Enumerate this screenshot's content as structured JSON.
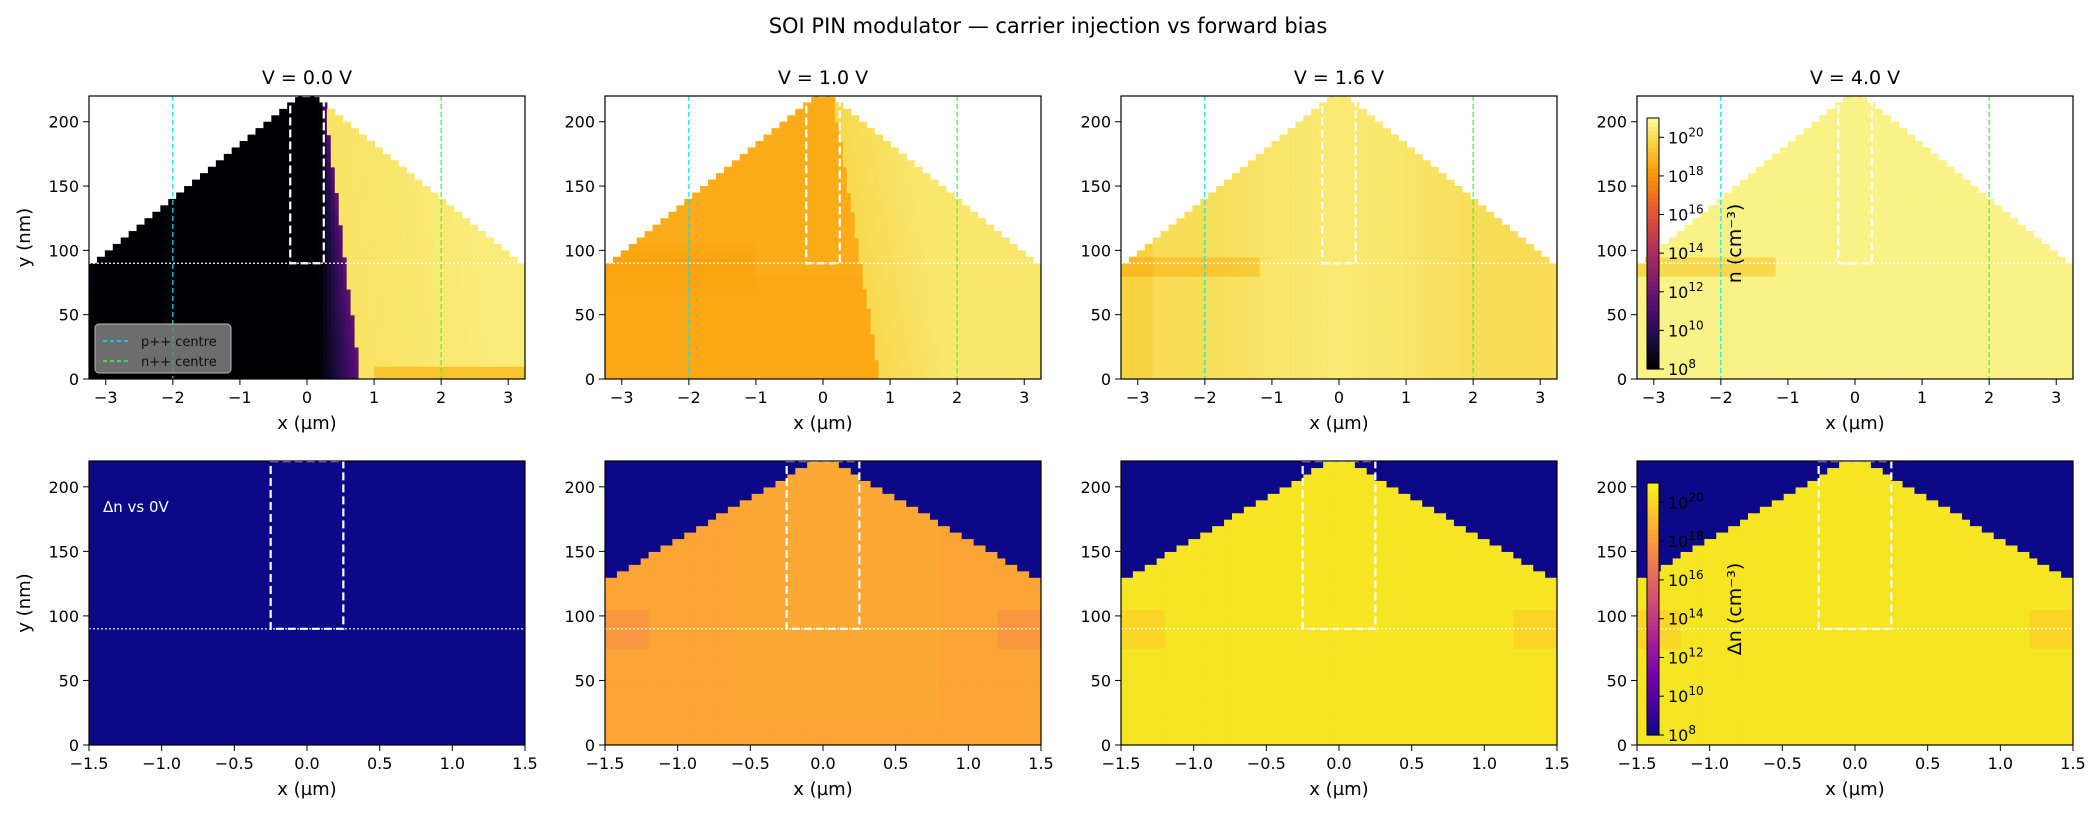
{
  "title": "SOI PIN modulator — carrier injection vs forward bias",
  "colors": {
    "inferno": [
      "#000004",
      "#1b0c41",
      "#4a0c6b",
      "#781c6d",
      "#a52c60",
      "#cf4446",
      "#ed6925",
      "#fb9b06",
      "#f7d13d",
      "#fcffa4"
    ],
    "plasma": [
      "#0d0887",
      "#46039f",
      "#7201a8",
      "#9c179e",
      "#bd3786",
      "#d8576b",
      "#ed7953",
      "#fb9f3a",
      "#fdca26",
      "#f0f921"
    ],
    "p_marker": "#00e5ff",
    "n_marker": "#33ff33",
    "overlay": "#ffffff"
  },
  "chart_data": [
    {
      "type": "heatmap",
      "row": "top",
      "title": "V = 0.0 V",
      "xlabel": "x (µm)",
      "ylabel": "y (nm)",
      "xlim": [
        -3.25,
        3.25
      ],
      "ylim": [
        0,
        220
      ],
      "xticks": [
        "−3",
        "−2",
        "−1",
        "0",
        "1",
        "2",
        "3"
      ],
      "xtick_values": [
        -3,
        -2,
        -1,
        0,
        1,
        2,
        3
      ],
      "yticks": [
        "0",
        "50",
        "100",
        "150",
        "200"
      ],
      "ytick_values": [
        0,
        50,
        100,
        150,
        200
      ],
      "legend": [
        {
          "label": "p++ centre",
          "x": -2,
          "color": "#00e5ff"
        },
        {
          "label": "n++ centre",
          "x": 2,
          "color": "#33ff33"
        }
      ],
      "legend_position": "lower-left",
      "rib_box": {
        "x": [
          -0.25,
          0.25
        ],
        "y": [
          90,
          220
        ]
      },
      "slab_line_y": 90,
      "colormap": "inferno",
      "log_range": [
        8,
        21
      ],
      "field": "bias0",
      "v": 0.0
    },
    {
      "type": "heatmap",
      "row": "top",
      "title": "V = 1.0 V",
      "xlabel": "x (µm)",
      "xlim": [
        -3.25,
        3.25
      ],
      "ylim": [
        0,
        220
      ],
      "xticks": [
        "−3",
        "−2",
        "−1",
        "0",
        "1",
        "2",
        "3"
      ],
      "xtick_values": [
        -3,
        -2,
        -1,
        0,
        1,
        2,
        3
      ],
      "yticks": [
        "0",
        "50",
        "100",
        "150",
        "200"
      ],
      "ytick_values": [
        0,
        50,
        100,
        150,
        200
      ],
      "markers": [
        {
          "x": -2,
          "color": "#00e5ff"
        },
        {
          "x": 2,
          "color": "#33ff33"
        }
      ],
      "rib_box": {
        "x": [
          -0.25,
          0.25
        ],
        "y": [
          90,
          220
        ]
      },
      "slab_line_y": 90,
      "colormap": "inferno",
      "log_range": [
        8,
        21
      ],
      "field": "bias1",
      "v": 1.0
    },
    {
      "type": "heatmap",
      "row": "top",
      "title": "V = 1.6 V",
      "xlabel": "x (µm)",
      "xlim": [
        -3.25,
        3.25
      ],
      "ylim": [
        0,
        220
      ],
      "xticks": [
        "−3",
        "−2",
        "−1",
        "0",
        "1",
        "2",
        "3"
      ],
      "xtick_values": [
        -3,
        -2,
        -1,
        0,
        1,
        2,
        3
      ],
      "yticks": [
        "0",
        "50",
        "100",
        "150",
        "200"
      ],
      "ytick_values": [
        0,
        50,
        100,
        150,
        200
      ],
      "markers": [
        {
          "x": -2,
          "color": "#00e5ff"
        },
        {
          "x": 2,
          "color": "#33ff33"
        }
      ],
      "rib_box": {
        "x": [
          -0.25,
          0.25
        ],
        "y": [
          90,
          220
        ]
      },
      "slab_line_y": 90,
      "colormap": "inferno",
      "log_range": [
        8,
        21
      ],
      "field": "bias16",
      "v": 1.6
    },
    {
      "type": "heatmap",
      "row": "top",
      "title": "V = 4.0 V",
      "xlabel": "x (µm)",
      "xlim": [
        -3.25,
        3.25
      ],
      "ylim": [
        0,
        220
      ],
      "xticks": [
        "−3",
        "−2",
        "−1",
        "0",
        "1",
        "2",
        "3"
      ],
      "xtick_values": [
        -3,
        -2,
        -1,
        0,
        1,
        2,
        3
      ],
      "yticks": [
        "0",
        "50",
        "100",
        "150",
        "200"
      ],
      "ytick_values": [
        0,
        50,
        100,
        150,
        200
      ],
      "markers": [
        {
          "x": -2,
          "color": "#00e5ff"
        },
        {
          "x": 2,
          "color": "#33ff33"
        }
      ],
      "rib_box": {
        "x": [
          -0.25,
          0.25
        ],
        "y": [
          90,
          220
        ]
      },
      "slab_line_y": 90,
      "colormap": "inferno",
      "log_range": [
        8,
        21
      ],
      "field": "bias4",
      "v": 4.0,
      "colorbar": {
        "label": "n  (cm⁻³)",
        "ticks": [
          {
            "base": "10",
            "exp": "8"
          },
          {
            "base": "10",
            "exp": "10"
          },
          {
            "base": "10",
            "exp": "12"
          },
          {
            "base": "10",
            "exp": "14"
          },
          {
            "base": "10",
            "exp": "16"
          },
          {
            "base": "10",
            "exp": "18"
          },
          {
            "base": "10",
            "exp": "20"
          }
        ],
        "tick_values": [
          8,
          10,
          12,
          14,
          16,
          18,
          20
        ],
        "range": [
          8,
          21
        ]
      }
    },
    {
      "type": "heatmap",
      "row": "bottom",
      "xlabel": "x (µm)",
      "ylabel": "y (nm)",
      "xlim": [
        -1.5,
        1.5
      ],
      "ylim": [
        0,
        220
      ],
      "xticks": [
        "−1.5",
        "−1.0",
        "−0.5",
        "0.0",
        "0.5",
        "1.0",
        "1.5"
      ],
      "xtick_values": [
        -1.5,
        -1,
        -0.5,
        0,
        0.5,
        1,
        1.5
      ],
      "yticks": [
        "0",
        "50",
        "100",
        "150",
        "200"
      ],
      "ytick_values": [
        0,
        50,
        100,
        150,
        200
      ],
      "annotation": "Δn vs 0V",
      "rib_box": {
        "x": [
          -0.25,
          0.25
        ],
        "y": [
          90,
          220
        ]
      },
      "slab_line_y": 90,
      "colormap": "plasma",
      "log_range": [
        8,
        21
      ],
      "field": "delta0",
      "v": 0.0
    },
    {
      "type": "heatmap",
      "row": "bottom",
      "xlabel": "x (µm)",
      "xlim": [
        -1.5,
        1.5
      ],
      "ylim": [
        0,
        220
      ],
      "xticks": [
        "−1.5",
        "−1.0",
        "−0.5",
        "0.0",
        "0.5",
        "1.0",
        "1.5"
      ],
      "xtick_values": [
        -1.5,
        -1,
        -0.5,
        0,
        0.5,
        1,
        1.5
      ],
      "yticks": [
        "0",
        "50",
        "100",
        "150",
        "200"
      ],
      "ytick_values": [
        0,
        50,
        100,
        150,
        200
      ],
      "rib_box": {
        "x": [
          -0.25,
          0.25
        ],
        "y": [
          90,
          220
        ]
      },
      "slab_line_y": 90,
      "colormap": "plasma",
      "log_range": [
        8,
        21
      ],
      "field": "delta",
      "v": 1.0
    },
    {
      "type": "heatmap",
      "row": "bottom",
      "xlabel": "x (µm)",
      "xlim": [
        -1.5,
        1.5
      ],
      "ylim": [
        0,
        220
      ],
      "xticks": [
        "−1.5",
        "−1.0",
        "−0.5",
        "0.0",
        "0.5",
        "1.0",
        "1.5"
      ],
      "xtick_values": [
        -1.5,
        -1,
        -0.5,
        0,
        0.5,
        1,
        1.5
      ],
      "yticks": [
        "0",
        "50",
        "100",
        "150",
        "200"
      ],
      "ytick_values": [
        0,
        50,
        100,
        150,
        200
      ],
      "rib_box": {
        "x": [
          -0.25,
          0.25
        ],
        "y": [
          90,
          220
        ]
      },
      "slab_line_y": 90,
      "colormap": "plasma",
      "log_range": [
        8,
        21
      ],
      "field": "delta",
      "v": 1.6
    },
    {
      "type": "heatmap",
      "row": "bottom",
      "xlabel": "x (µm)",
      "xlim": [
        -1.5,
        1.5
      ],
      "ylim": [
        0,
        220
      ],
      "xticks": [
        "−1.5",
        "−1.0",
        "−0.5",
        "0.0",
        "0.5",
        "1.0",
        "1.5"
      ],
      "xtick_values": [
        -1.5,
        -1,
        -0.5,
        0,
        0.5,
        1,
        1.5
      ],
      "yticks": [
        "0",
        "50",
        "100",
        "150",
        "200"
      ],
      "ytick_values": [
        0,
        50,
        100,
        150,
        200
      ],
      "rib_box": {
        "x": [
          -0.25,
          0.25
        ],
        "y": [
          90,
          220
        ]
      },
      "slab_line_y": 90,
      "colormap": "plasma",
      "log_range": [
        8,
        21
      ],
      "field": "delta",
      "v": 4.0,
      "colorbar": {
        "label": "Δn  (cm⁻³)",
        "ticks": [
          {
            "base": "10",
            "exp": "8"
          },
          {
            "base": "10",
            "exp": "10"
          },
          {
            "base": "10",
            "exp": "12"
          },
          {
            "base": "10",
            "exp": "14"
          },
          {
            "base": "10",
            "exp": "16"
          },
          {
            "base": "10",
            "exp": "18"
          },
          {
            "base": "10",
            "exp": "20"
          }
        ],
        "tick_values": [
          8,
          10,
          12,
          14,
          16,
          18,
          20
        ],
        "range": [
          8,
          21
        ]
      }
    }
  ]
}
